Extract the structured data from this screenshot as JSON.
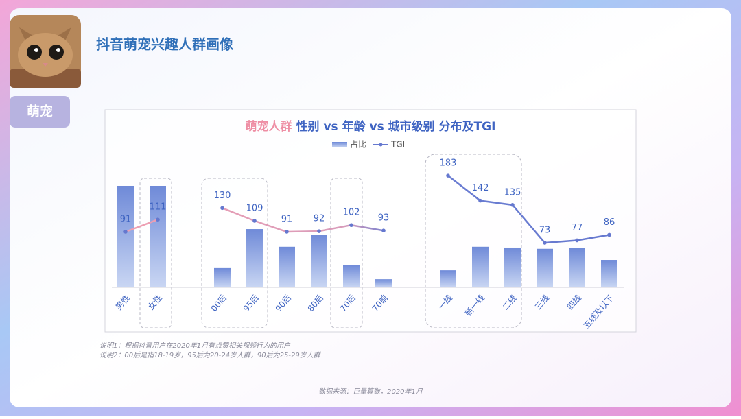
{
  "header": {
    "tag": "萌宠",
    "title": "抖音萌宠兴趣人群画像"
  },
  "chart_data": {
    "type": "combo",
    "title_highlight": "萌宠人群",
    "title": "性别 vs 年龄 vs 城市级别 分布及TGI",
    "categories": [
      "男性",
      "女性",
      null,
      "00后",
      "95后",
      "90后",
      "80后",
      "70后",
      "70前",
      null,
      "一线",
      "新一线",
      "二线",
      "三线",
      "四线",
      "五线及以下"
    ],
    "series": [
      {
        "name": "占比",
        "kind": "bar",
        "color": "#7b97dd",
        "values": [
          50,
          50,
          null,
          9.5,
          28.7,
          20,
          26,
          11,
          4,
          null,
          8.4,
          20,
          19.6,
          19,
          19.3,
          13.5
        ]
      },
      {
        "name": "TGI",
        "kind": "line",
        "color": "#6578cf",
        "values": [
          91,
          111,
          null,
          130,
          109,
          91,
          92,
          102,
          93,
          null,
          183,
          142,
          135,
          73,
          77,
          86
        ]
      }
    ],
    "legend": "top"
  },
  "notes": [
    "说明1：根据抖音用户在2020年1月有点赞相关视频行为的用户",
    "说明2：00后是指18-19岁，95后为20-24岁人群，90后为25-29岁人群"
  ],
  "source": "数据来源：巨量算数，2020年1月"
}
